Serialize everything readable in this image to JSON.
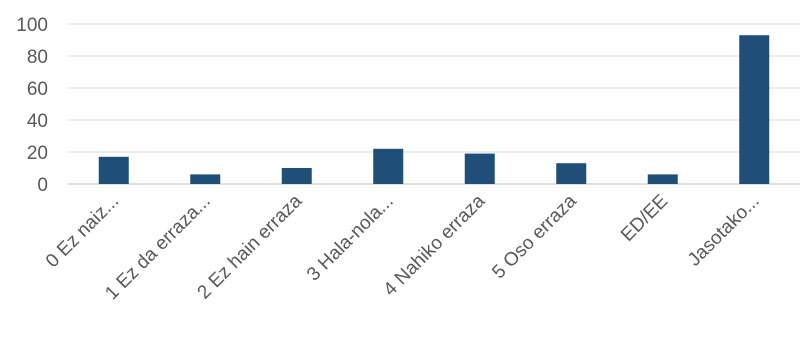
{
  "chart_data": {
    "type": "bar",
    "title": "",
    "xlabel": "",
    "ylabel": "",
    "categories": [
      "0 Ez naiz...",
      "1 Ez da erraza...",
      "2 Ez hain erraza",
      "3 Hala-nola...",
      "4 Nahiko erraza",
      "5 Oso erraza",
      "ED/EE",
      "Jasotako..."
    ],
    "values": [
      17,
      6,
      10,
      22,
      19,
      13,
      6,
      93
    ],
    "ylim": [
      0,
      100
    ],
    "yticks": [
      0,
      20,
      40,
      60,
      80,
      100
    ],
    "grid": true,
    "legend": "none",
    "colors": {
      "bar": "#1f4e79",
      "grid": "#d9d9d9",
      "axis": "#bfbfbf",
      "text": "#595959"
    }
  }
}
